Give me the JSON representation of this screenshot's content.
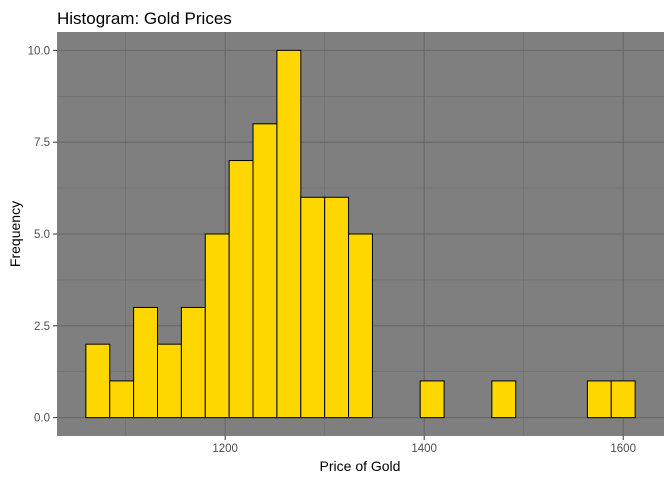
{
  "chart_data": {
    "type": "bar",
    "title": "Histogram: Gold Prices",
    "xlabel": "Price of Gold",
    "ylabel": "Frequency",
    "bin_width": 24,
    "bins": [
      {
        "start": 1060,
        "end": 1084,
        "count": 2
      },
      {
        "start": 1084,
        "end": 1108,
        "count": 1
      },
      {
        "start": 1108,
        "end": 1132,
        "count": 3
      },
      {
        "start": 1132,
        "end": 1156,
        "count": 2
      },
      {
        "start": 1156,
        "end": 1180,
        "count": 3
      },
      {
        "start": 1180,
        "end": 1204,
        "count": 5
      },
      {
        "start": 1204,
        "end": 1228,
        "count": 7
      },
      {
        "start": 1228,
        "end": 1252,
        "count": 8
      },
      {
        "start": 1252,
        "end": 1276,
        "count": 10
      },
      {
        "start": 1276,
        "end": 1300,
        "count": 6
      },
      {
        "start": 1300,
        "end": 1324,
        "count": 6
      },
      {
        "start": 1324,
        "end": 1348,
        "count": 5
      },
      {
        "start": 1348,
        "end": 1372,
        "count": 0
      },
      {
        "start": 1372,
        "end": 1396,
        "count": 0
      },
      {
        "start": 1396,
        "end": 1420,
        "count": 1
      },
      {
        "start": 1420,
        "end": 1444,
        "count": 0
      },
      {
        "start": 1444,
        "end": 1468,
        "count": 0
      },
      {
        "start": 1468,
        "end": 1492,
        "count": 1
      },
      {
        "start": 1492,
        "end": 1516,
        "count": 0
      },
      {
        "start": 1516,
        "end": 1540,
        "count": 0
      },
      {
        "start": 1540,
        "end": 1564,
        "count": 0
      },
      {
        "start": 1564,
        "end": 1588,
        "count": 1
      },
      {
        "start": 1588,
        "end": 1612,
        "count": 1
      }
    ],
    "xlim": [
      1031,
      1641
    ],
    "ylim": [
      -0.5,
      10.5
    ],
    "x_ticks": [
      1200,
      1400,
      1600
    ],
    "x_tick_labels": [
      "1200",
      "1400",
      "1600"
    ],
    "y_ticks": [
      0,
      2.5,
      5,
      7.5,
      10
    ],
    "y_tick_labels": [
      "0.0",
      "2.5",
      "5.0",
      "7.5",
      "10.0"
    ],
    "grid": true,
    "colors": {
      "panel_background": "#7f7f7f",
      "grid_major": "#666666",
      "grid_minor": "#6e6e6e",
      "bar_fill": "#ffd700",
      "bar_outline": "#000000"
    }
  }
}
